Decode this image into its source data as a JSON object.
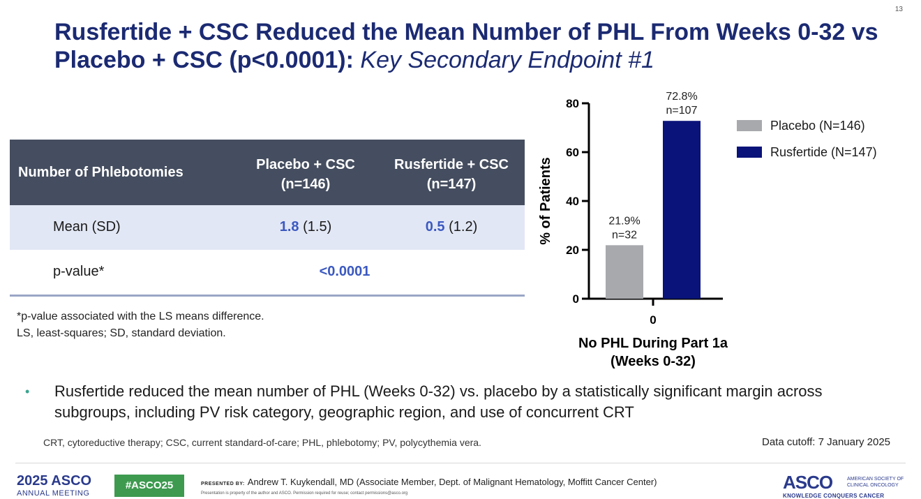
{
  "page_number": "13",
  "title": {
    "main": "Rusfertide + CSC Reduced the Mean Number of PHL From Weeks 0-32 vs Placebo + CSC (p<0.0001): ",
    "italic": "Key Secondary Endpoint #1"
  },
  "table": {
    "header": {
      "col0": "Number of Phlebotomies",
      "col1_line1": "Placebo + CSC",
      "col1_line2": "(n=146)",
      "col2_line1": "Rusfertide + CSC",
      "col2_line2": "(n=147)"
    },
    "mean_row": {
      "label": "Mean (SD)",
      "placebo_mean": "1.8",
      "placebo_sd": " (1.5)",
      "rusfertide_mean": "0.5",
      "rusfertide_sd": " (1.2)"
    },
    "pvalue_row": {
      "label": "p-value*",
      "value": "<0.0001"
    }
  },
  "footnotes": {
    "line1": "*p-value associated with the LS means difference.",
    "line2": "LS, least-squares; SD, standard deviation."
  },
  "chart_data": {
    "type": "bar",
    "categories": [
      "0"
    ],
    "series": [
      {
        "name": "Placebo (N=146)",
        "values": [
          21.9
        ],
        "label_pct": "21.9%",
        "label_n": "n=32",
        "color": "#a8a9ad"
      },
      {
        "name": "Rusfertide (N=147)",
        "values": [
          72.8
        ],
        "label_pct": "72.8%",
        "label_n": "n=107",
        "color": "#0a1379"
      }
    ],
    "ylabel": "% of Patients",
    "xlabel_line1": "No PHL During Part 1a",
    "xlabel_line2": "(Weeks 0-32)",
    "ylim": [
      0,
      80
    ],
    "yticks": [
      0,
      20,
      40,
      60,
      80
    ],
    "legend_position": "top-right"
  },
  "bullet": "Rusfertide reduced the mean number of PHL (Weeks 0-32) vs. placebo by a statistically significant margin across subgroups, including PV risk category, geographic region, and use of concurrent CRT",
  "abbreviations": "CRT, cytoreductive therapy; CSC, current standard-of-care; PHL, phlebotomy; PV, polycythemia vera.",
  "data_cutoff": "Data cutoff: 7 January 2025",
  "footer": {
    "meeting_year": "2025 ASCO",
    "meeting_sub": "ANNUAL MEETING",
    "hashtag": "#ASCO25",
    "presented_label": "PRESENTED BY:",
    "presenter": "Andrew T. Kuykendall, MD (Associate Member, Dept. of Malignant Hematology, Moffitt Cancer Center)",
    "reuse": "Presentation is property of the author and ASCO. Permission required for reuse; contact permissions@asco.org",
    "logo_word": "ASCO",
    "logo_society_line1": "AMERICAN SOCIETY OF",
    "logo_society_line2": "CLINICAL ONCOLOGY",
    "logo_tagline": "KNOWLEDGE CONQUERS CANCER"
  },
  "colors": {
    "title": "#1b2a72",
    "table_header": "#454e60",
    "table_shade": "#e2e7f5",
    "highlight": "#3b59c0"
  }
}
